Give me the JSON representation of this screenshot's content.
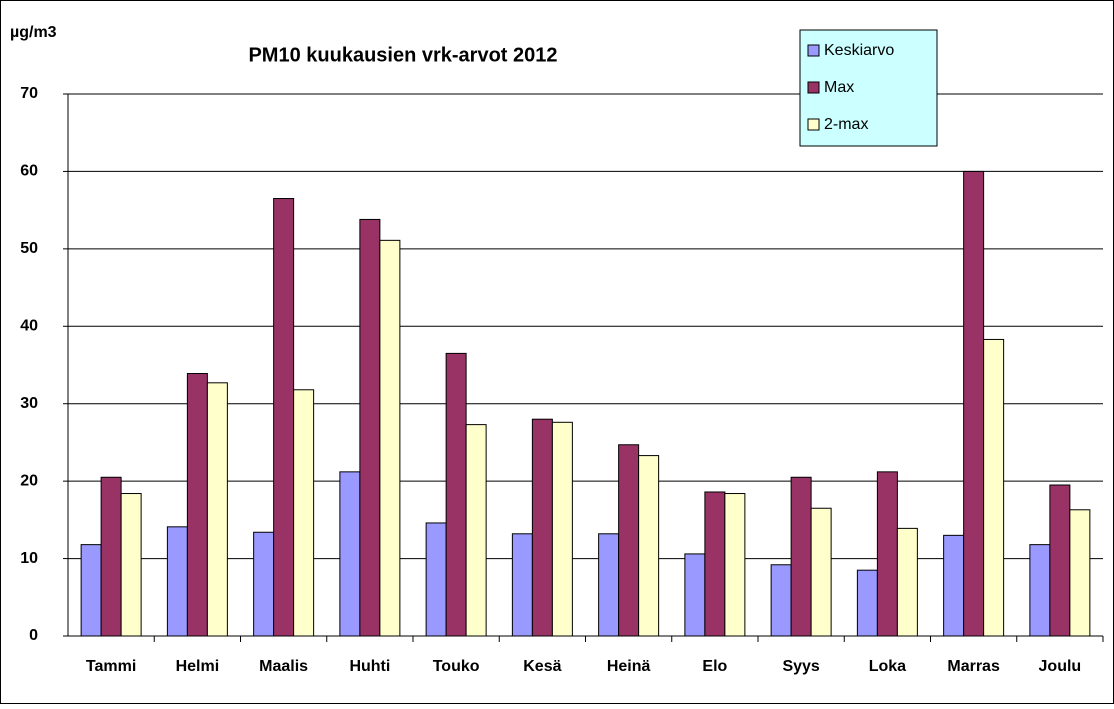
{
  "chart_data": {
    "type": "bar",
    "title": "PM10 kuukausien vrk-arvot 2012",
    "y_label": "µg/m3",
    "categories": [
      "Tammi",
      "Helmi",
      "Maalis",
      "Huhti",
      "Touko",
      "Kesä",
      "Heinä",
      "Elo",
      "Syys",
      "Loka",
      "Marras",
      "Joulu"
    ],
    "series": [
      {
        "name": "Keskiarvo",
        "color": "#9999ff",
        "values": [
          11.8,
          14.1,
          13.4,
          21.2,
          14.6,
          13.2,
          13.2,
          10.6,
          9.2,
          8.5,
          13.0,
          11.8
        ]
      },
      {
        "name": "Max",
        "color": "#993366",
        "values": [
          20.5,
          33.9,
          56.5,
          53.8,
          36.5,
          28.0,
          24.7,
          18.6,
          20.5,
          21.2,
          60.0,
          19.5
        ]
      },
      {
        "name": "2-max",
        "color": "#ffffcc",
        "values": [
          18.4,
          32.7,
          31.8,
          51.1,
          27.3,
          27.6,
          23.3,
          18.4,
          16.5,
          13.9,
          38.3,
          16.3
        ]
      }
    ],
    "ylim": [
      0,
      70
    ],
    "yticks": [
      0,
      10,
      20,
      30,
      40,
      50,
      60,
      70
    ],
    "grid": true,
    "legend": "top-right"
  }
}
